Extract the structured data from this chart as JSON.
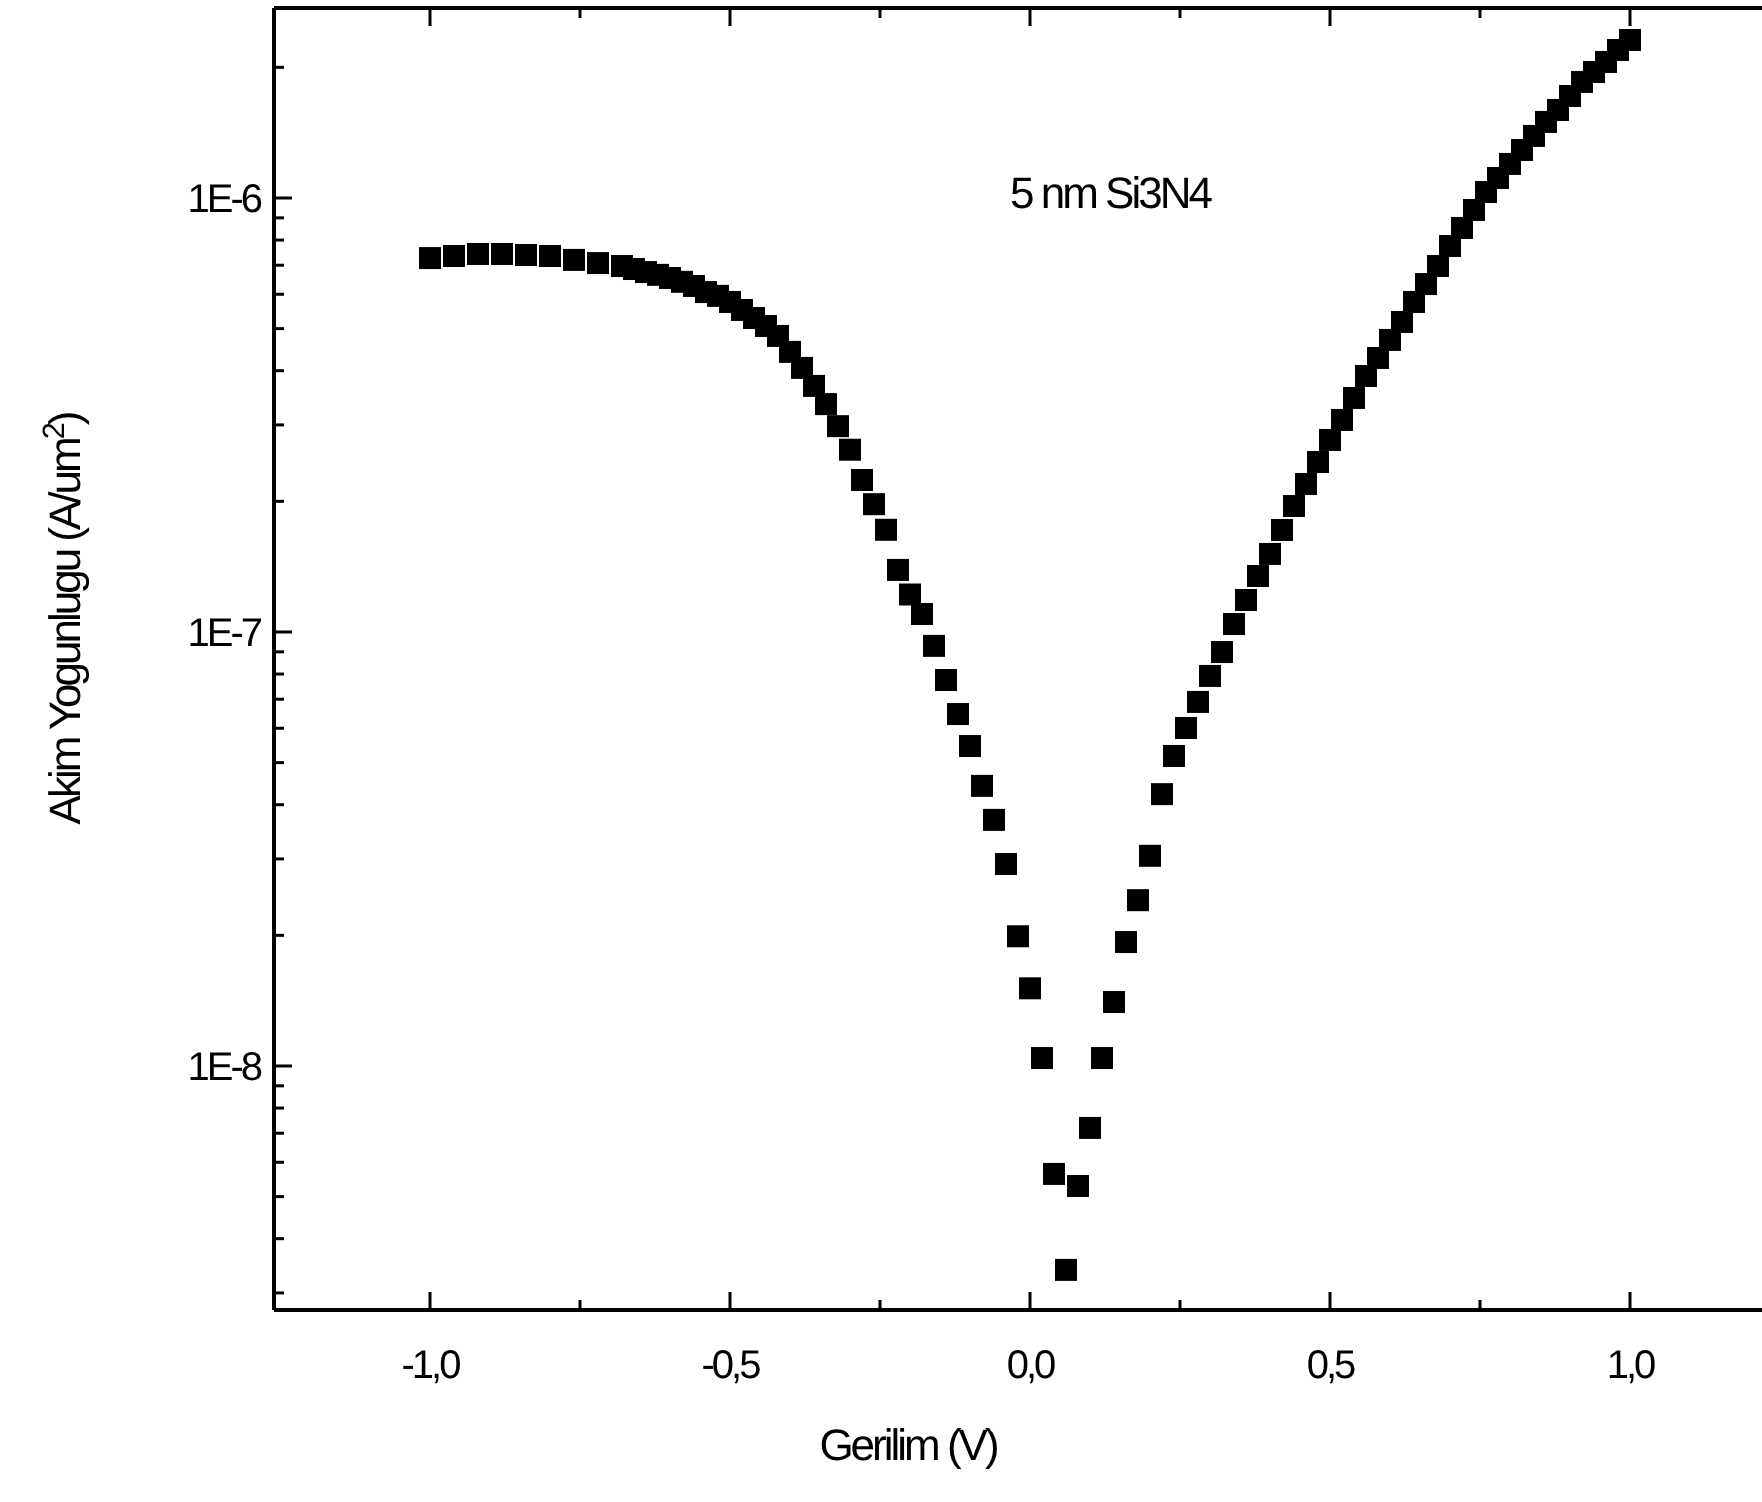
{
  "chart_data": {
    "type": "scatter",
    "xlabel": "Gerilim (V)",
    "ylabel": "Akim Yogunlugu (A/um$^{2}$)",
    "annotations": [
      "5 nm Si3N4"
    ],
    "log": "y",
    "marker": "square",
    "grid": false,
    "xlim": [
      -1.26,
      1.22
    ],
    "ylim": [
      2.74e-09,
      2.74e-06
    ],
    "xticks": [
      {
        "value": -1,
        "label": "-1,0"
      },
      {
        "value": -0.75,
        "label": null
      },
      {
        "value": -0.5,
        "label": "-0,5"
      },
      {
        "value": -0.25,
        "label": null
      },
      {
        "value": 0,
        "label": "0,0"
      },
      {
        "value": 0.25,
        "label": null
      },
      {
        "value": 0.5,
        "label": "0,5"
      },
      {
        "value": 0.75,
        "label": null
      },
      {
        "value": 1,
        "label": "1,0"
      }
    ],
    "yticks": [
      {
        "value": 3e-09,
        "label": null
      },
      {
        "value": 4e-09,
        "label": null
      },
      {
        "value": 5e-09,
        "label": null
      },
      {
        "value": 6e-09,
        "label": null
      },
      {
        "value": 7e-09,
        "label": null
      },
      {
        "value": 8e-09,
        "label": null
      },
      {
        "value": 9e-09,
        "label": null
      },
      {
        "value": 1e-08,
        "label": "1E-8"
      },
      {
        "value": 2e-08,
        "label": null
      },
      {
        "value": 3e-08,
        "label": null
      },
      {
        "value": 4e-08,
        "label": null
      },
      {
        "value": 5e-08,
        "label": null
      },
      {
        "value": 6e-08,
        "label": null
      },
      {
        "value": 7e-08,
        "label": null
      },
      {
        "value": 8e-08,
        "label": null
      },
      {
        "value": 9e-08,
        "label": null
      },
      {
        "value": 1e-07,
        "label": "1E-7"
      },
      {
        "value": 2e-07,
        "label": null
      },
      {
        "value": 3e-07,
        "label": null
      },
      {
        "value": 4e-07,
        "label": null
      },
      {
        "value": 5e-07,
        "label": null
      },
      {
        "value": 6e-07,
        "label": null
      },
      {
        "value": 7e-07,
        "label": null
      },
      {
        "value": 8e-07,
        "label": null
      },
      {
        "value": 9e-07,
        "label": null
      },
      {
        "value": 1e-06,
        "label": "1E-6"
      },
      {
        "value": 2e-06,
        "label": null
      }
    ],
    "series": [
      {
        "color": "#000000",
        "x": [
          -1,
          -0.96,
          -0.92,
          -0.88,
          -0.84,
          -0.8,
          -0.76,
          -0.72,
          -0.68,
          -0.66,
          -0.64,
          -0.62,
          -0.6,
          -0.58,
          -0.56,
          -0.54,
          -0.52,
          -0.5,
          -0.48,
          -0.46,
          -0.44,
          -0.42,
          -0.4,
          -0.38,
          -0.36,
          -0.34,
          -0.32,
          -0.3,
          -0.28,
          -0.26,
          -0.24,
          -0.22,
          -0.2,
          -0.18,
          -0.16,
          -0.14,
          -0.12,
          -0.1,
          -0.08,
          -0.06,
          -0.04,
          -0.02,
          0,
          0.02,
          0.04,
          0.06,
          0.08,
          0.1,
          0.12,
          0.14,
          0.16,
          0.18,
          0.2,
          0.22,
          0.24,
          0.26,
          0.28,
          0.3,
          0.32,
          0.34,
          0.36,
          0.38,
          0.4,
          0.42,
          0.44,
          0.46,
          0.48,
          0.5,
          0.52,
          0.54,
          0.56,
          0.58,
          0.6,
          0.62,
          0.64,
          0.66,
          0.68,
          0.7,
          0.72,
          0.74,
          0.76,
          0.78,
          0.8,
          0.82,
          0.84,
          0.86,
          0.88,
          0.9,
          0.92,
          0.94,
          0.96,
          0.98,
          1
        ],
        "values": [
          7.27e-07,
          7.35e-07,
          7.43e-07,
          7.43e-07,
          7.39e-07,
          7.35e-07,
          7.2e-07,
          7.08e-07,
          6.97e-07,
          6.86e-07,
          6.75e-07,
          6.65e-07,
          6.54e-07,
          6.41e-07,
          6.27e-07,
          6.07e-07,
          5.95e-07,
          5.76e-07,
          5.52e-07,
          5.29e-07,
          5.07e-07,
          4.81e-07,
          4.42e-07,
          4.06e-07,
          3.69e-07,
          3.35e-07,
          2.98e-07,
          2.63e-07,
          2.24e-07,
          1.97e-07,
          1.72e-07,
          1.39e-07,
          1.22e-07,
          1.1e-07,
          9.29e-08,
          7.75e-08,
          6.47e-08,
          5.46e-08,
          4.42e-08,
          3.69e-08,
          2.92e-08,
          1.99e-08,
          1.51e-08,
          1.043e-08,
          5.64e-09,
          3.39e-09,
          5.29e-09,
          7.2e-09,
          1.043e-08,
          1.404e-08,
          1.93e-08,
          2.41e-08,
          3.05e-08,
          4.23e-08,
          5.18e-08,
          6.01e-08,
          6.9e-08,
          7.92e-08,
          8.99e-08,
          1.043e-07,
          1.185e-07,
          1.346e-07,
          1.513e-07,
          1.718e-07,
          1.951e-07,
          2.193e-07,
          2.464e-07,
          2.77e-07,
          3.08e-07,
          3.461e-07,
          3.889e-07,
          4.279e-07,
          4.709e-07,
          5.18e-07,
          5.76e-07,
          6.334e-07,
          6.971e-07,
          7.75e-07,
          8.53e-07,
          9.384e-07,
          1.032e-06,
          1.112e-06,
          1.198e-06,
          1.29e-06,
          1.39e-06,
          1.497e-06,
          1.595e-06,
          1.718e-06,
          1.851e-06,
          1.951e-06,
          2.058e-06,
          2.193e-06,
          2.312e-06
        ]
      }
    ]
  }
}
